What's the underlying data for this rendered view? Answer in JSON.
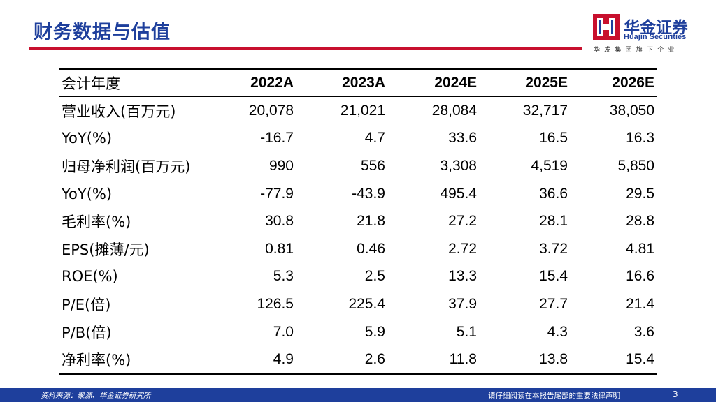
{
  "page": {
    "title": "财务数据与估值",
    "footer_source": "资料来源：聚源、华金证券研究所",
    "footer_disclaimer": "请仔细阅读在本报告尾部的重要法律声明",
    "page_number": "3"
  },
  "logo": {
    "name_cn": "华金证券",
    "name_en": "Huajin Securities",
    "tagline": "华发集团旗下企业"
  },
  "colors": {
    "brand_blue": "#1e3f9c",
    "accent_red": "#c8102e"
  },
  "table": {
    "header": [
      "会计年度",
      "2022A",
      "2023A",
      "2024E",
      "2025E",
      "2026E"
    ],
    "rows": [
      [
        "营业收入(百万元)",
        "20,078",
        "21,021",
        "28,084",
        "32,717",
        "38,050"
      ],
      [
        "YoY(%)",
        "-16.7",
        "4.7",
        "33.6",
        "16.5",
        "16.3"
      ],
      [
        "归母净利润(百万元)",
        "990",
        "556",
        "3,308",
        "4,519",
        "5,850"
      ],
      [
        "YoY(%)",
        "-77.9",
        "-43.9",
        "495.4",
        "36.6",
        "29.5"
      ],
      [
        "毛利率(%)",
        "30.8",
        "21.8",
        "27.2",
        "28.1",
        "28.8"
      ],
      [
        "EPS(摊薄/元)",
        "0.81",
        "0.46",
        "2.72",
        "3.72",
        "4.81"
      ],
      [
        "ROE(%)",
        "5.3",
        "2.5",
        "13.3",
        "15.4",
        "16.6"
      ],
      [
        "P/E(倍)",
        "126.5",
        "225.4",
        "37.9",
        "27.7",
        "21.4"
      ],
      [
        "P/B(倍)",
        "7.0",
        "5.9",
        "5.1",
        "4.3",
        "3.6"
      ],
      [
        "净利率(%)",
        "4.9",
        "2.6",
        "11.8",
        "13.8",
        "15.4"
      ]
    ]
  }
}
